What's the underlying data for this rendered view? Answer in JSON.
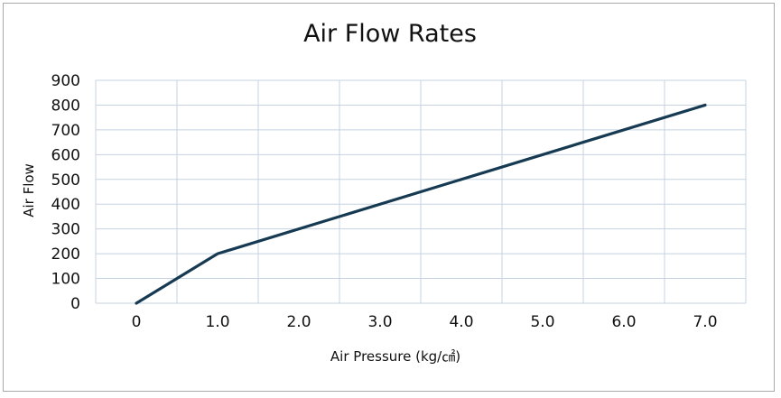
{
  "chart_data": {
    "type": "line",
    "title": "Air Flow Rates",
    "xlabel": "Air Pressure (kg/㎠)",
    "ylabel": "Air Flow",
    "categories": [
      "0",
      "1.0",
      "2.0",
      "3.0",
      "4.0",
      "5.0",
      "6.0",
      "7.0"
    ],
    "x": [
      0,
      1,
      7
    ],
    "series": [
      {
        "name": "Air Flow",
        "x": [
          0,
          1,
          7
        ],
        "values": [
          0,
          200,
          800
        ]
      }
    ],
    "yticks": [
      0,
      100,
      200,
      300,
      400,
      500,
      600,
      700,
      800,
      900
    ],
    "ylim": [
      0,
      900
    ],
    "xlim": [
      -0.5,
      7.5
    ],
    "grid": true,
    "colors": {
      "line": "#163a52",
      "grid": "#c5d3e2",
      "border": "#a9a9a9"
    }
  }
}
